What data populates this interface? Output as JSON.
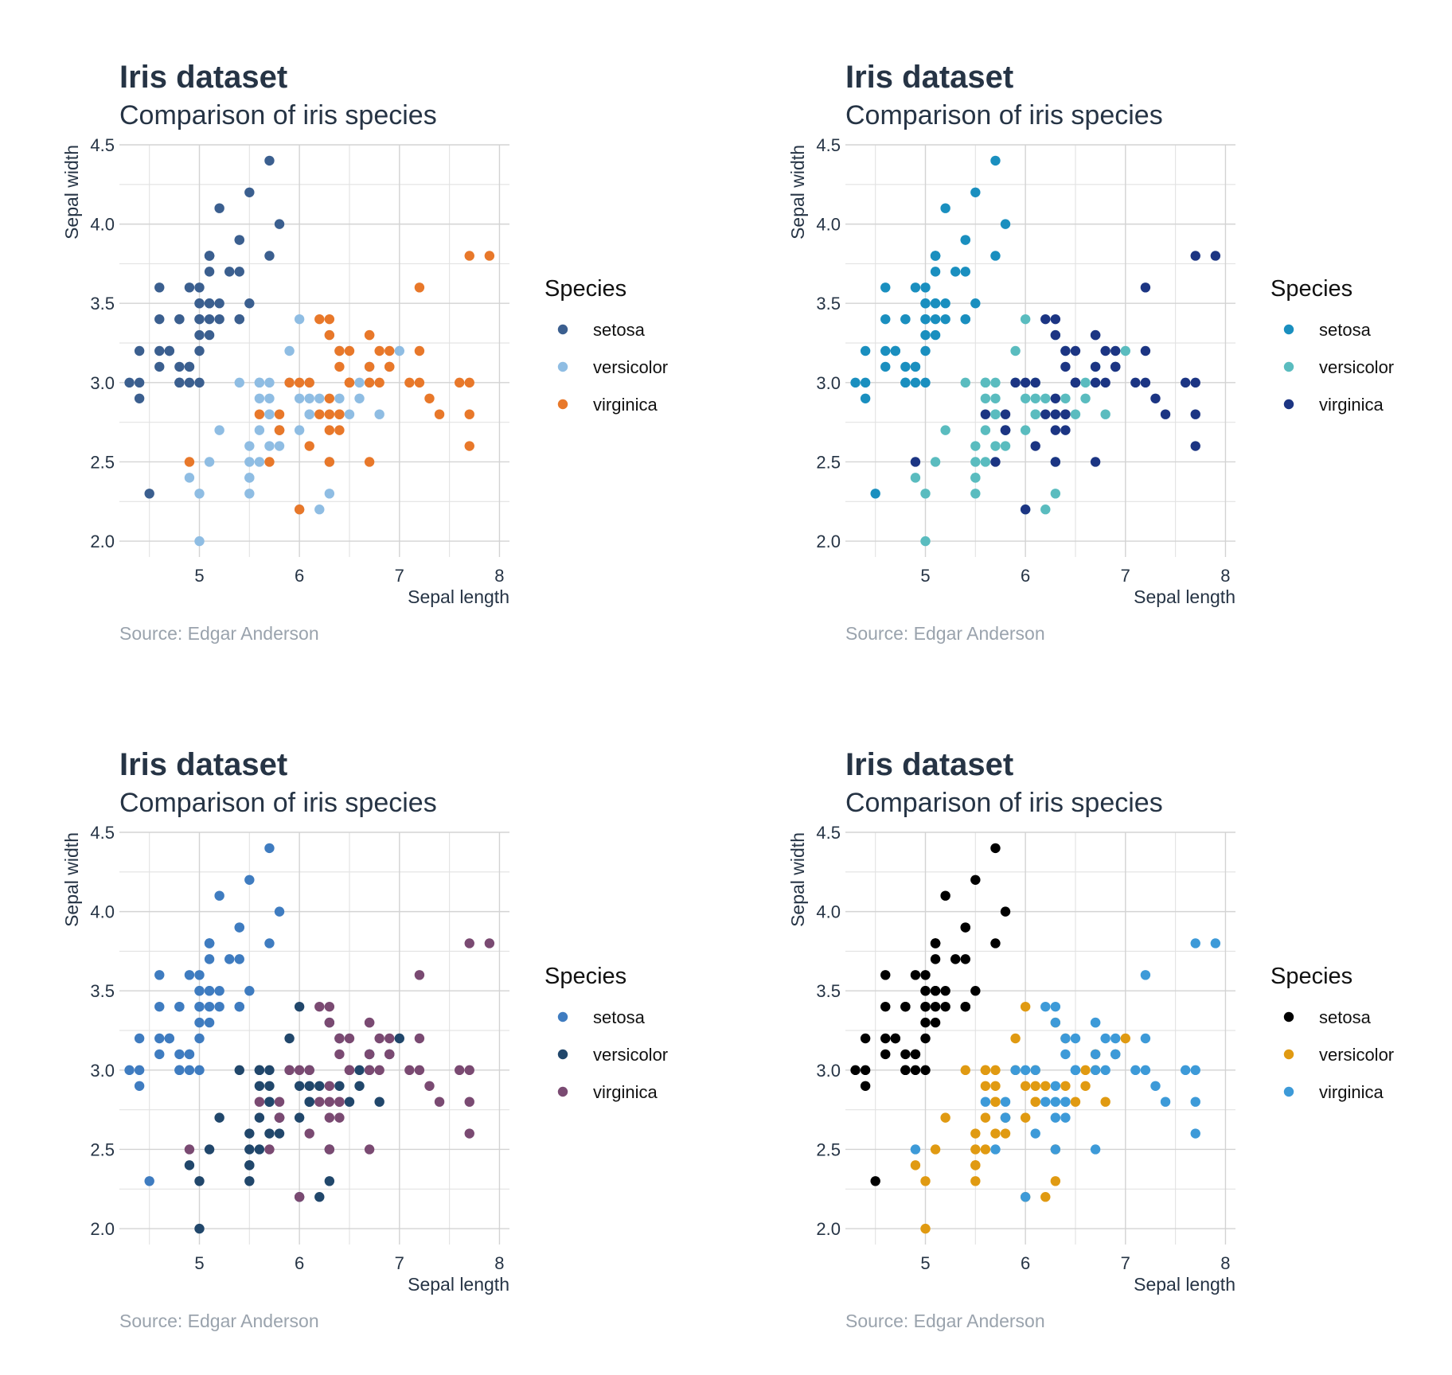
{
  "chart_data": [
    {
      "type": "scatter",
      "title": "Iris dataset",
      "subtitle": "Comparison of iris species",
      "xlabel": "Sepal length",
      "ylabel": "Sepal width",
      "caption": "Source: Edgar Anderson",
      "xlim": [
        4.2,
        8.1
      ],
      "ylim": [
        1.9,
        4.5
      ],
      "xticks": [
        "5",
        "6",
        "7",
        "8"
      ],
      "yticks": [
        "2.0",
        "2.5",
        "3.0",
        "3.5",
        "4.0",
        "4.5"
      ],
      "grid": true,
      "legend": {
        "title": "Species",
        "position": "right"
      },
      "series_ref": "iris",
      "colors": {
        "setosa": "#3b5f8f",
        "versicolor": "#8fbde3",
        "virginica": "#e8782a"
      }
    },
    {
      "type": "scatter",
      "title": "Iris dataset",
      "subtitle": "Comparison of iris species",
      "xlabel": "Sepal length",
      "ylabel": "Sepal width",
      "caption": "Source: Edgar Anderson",
      "xlim": [
        4.2,
        8.1
      ],
      "ylim": [
        1.9,
        4.5
      ],
      "xticks": [
        "5",
        "6",
        "7",
        "8"
      ],
      "yticks": [
        "2.0",
        "2.5",
        "3.0",
        "3.5",
        "4.0",
        "4.5"
      ],
      "grid": true,
      "legend": {
        "title": "Species",
        "position": "right"
      },
      "series_ref": "iris",
      "colors": {
        "setosa": "#1a8fbf",
        "versicolor": "#5abcbf",
        "virginica": "#1c3583"
      }
    },
    {
      "type": "scatter",
      "title": "Iris dataset",
      "subtitle": "Comparison of iris species",
      "xlabel": "Sepal length",
      "ylabel": "Sepal width",
      "caption": "Source: Edgar Anderson",
      "xlim": [
        4.2,
        8.1
      ],
      "ylim": [
        1.9,
        4.5
      ],
      "xticks": [
        "5",
        "6",
        "7",
        "8"
      ],
      "yticks": [
        "2.0",
        "2.5",
        "3.0",
        "3.5",
        "4.0",
        "4.5"
      ],
      "grid": true,
      "legend": {
        "title": "Species",
        "position": "right"
      },
      "series_ref": "iris",
      "colors": {
        "setosa": "#3f7cc0",
        "versicolor": "#21476b",
        "virginica": "#7a4a72"
      }
    },
    {
      "type": "scatter",
      "title": "Iris dataset",
      "subtitle": "Comparison of iris species",
      "xlabel": "Sepal length",
      "ylabel": "Sepal width",
      "caption": "Source: Edgar Anderson",
      "xlim": [
        4.2,
        8.1
      ],
      "ylim": [
        1.9,
        4.5
      ],
      "xticks": [
        "5",
        "6",
        "7",
        "8"
      ],
      "yticks": [
        "2.0",
        "2.5",
        "3.0",
        "3.5",
        "4.0",
        "4.5"
      ],
      "grid": true,
      "legend": {
        "title": "Species",
        "position": "right"
      },
      "series_ref": "iris",
      "colors": {
        "setosa": "#000000",
        "versicolor": "#e09a12",
        "virginica": "#3d9ad8"
      }
    }
  ],
  "iris": {
    "series": [
      {
        "name": "setosa",
        "points": [
          [
            5.1,
            3.5
          ],
          [
            4.9,
            3.0
          ],
          [
            4.7,
            3.2
          ],
          [
            4.6,
            3.1
          ],
          [
            5.0,
            3.6
          ],
          [
            5.4,
            3.9
          ],
          [
            4.6,
            3.4
          ],
          [
            5.0,
            3.4
          ],
          [
            4.4,
            2.9
          ],
          [
            4.9,
            3.1
          ],
          [
            5.4,
            3.7
          ],
          [
            4.8,
            3.4
          ],
          [
            4.8,
            3.0
          ],
          [
            4.3,
            3.0
          ],
          [
            5.8,
            4.0
          ],
          [
            5.7,
            4.4
          ],
          [
            5.4,
            3.9
          ],
          [
            5.1,
            3.5
          ],
          [
            5.7,
            3.8
          ],
          [
            5.1,
            3.8
          ],
          [
            5.4,
            3.4
          ],
          [
            5.1,
            3.7
          ],
          [
            4.6,
            3.6
          ],
          [
            5.1,
            3.3
          ],
          [
            4.8,
            3.4
          ],
          [
            5.0,
            3.0
          ],
          [
            5.0,
            3.4
          ],
          [
            5.2,
            3.5
          ],
          [
            5.2,
            3.4
          ],
          [
            4.7,
            3.2
          ],
          [
            4.8,
            3.1
          ],
          [
            5.4,
            3.4
          ],
          [
            5.2,
            4.1
          ],
          [
            5.5,
            4.2
          ],
          [
            4.9,
            3.1
          ],
          [
            5.0,
            3.2
          ],
          [
            5.5,
            3.5
          ],
          [
            4.9,
            3.6
          ],
          [
            4.4,
            3.0
          ],
          [
            5.1,
            3.4
          ],
          [
            5.0,
            3.5
          ],
          [
            4.5,
            2.3
          ],
          [
            4.4,
            3.2
          ],
          [
            5.0,
            3.5
          ],
          [
            5.1,
            3.8
          ],
          [
            4.8,
            3.0
          ],
          [
            5.1,
            3.8
          ],
          [
            4.6,
            3.2
          ],
          [
            5.3,
            3.7
          ],
          [
            5.0,
            3.3
          ]
        ]
      },
      {
        "name": "versicolor",
        "points": [
          [
            7.0,
            3.2
          ],
          [
            6.4,
            3.2
          ],
          [
            6.9,
            3.1
          ],
          [
            5.5,
            2.3
          ],
          [
            6.5,
            2.8
          ],
          [
            5.7,
            2.8
          ],
          [
            6.3,
            3.3
          ],
          [
            4.9,
            2.4
          ],
          [
            6.6,
            2.9
          ],
          [
            5.2,
            2.7
          ],
          [
            5.0,
            2.0
          ],
          [
            5.9,
            3.0
          ],
          [
            6.0,
            2.2
          ],
          [
            6.1,
            2.9
          ],
          [
            5.6,
            2.9
          ],
          [
            6.7,
            3.1
          ],
          [
            5.6,
            3.0
          ],
          [
            5.8,
            2.7
          ],
          [
            6.2,
            2.2
          ],
          [
            5.6,
            2.5
          ],
          [
            5.9,
            3.2
          ],
          [
            6.1,
            2.8
          ],
          [
            6.3,
            2.5
          ],
          [
            6.1,
            2.8
          ],
          [
            6.4,
            2.9
          ],
          [
            6.6,
            3.0
          ],
          [
            6.8,
            2.8
          ],
          [
            6.7,
            3.0
          ],
          [
            6.0,
            2.9
          ],
          [
            5.7,
            2.6
          ],
          [
            5.5,
            2.4
          ],
          [
            5.5,
            2.4
          ],
          [
            5.8,
            2.7
          ],
          [
            6.0,
            2.7
          ],
          [
            5.4,
            3.0
          ],
          [
            6.0,
            3.4
          ],
          [
            6.7,
            3.1
          ],
          [
            6.3,
            2.3
          ],
          [
            5.6,
            3.0
          ],
          [
            5.5,
            2.5
          ],
          [
            5.5,
            2.6
          ],
          [
            6.1,
            3.0
          ],
          [
            5.8,
            2.6
          ],
          [
            5.0,
            2.3
          ],
          [
            5.6,
            2.7
          ],
          [
            5.7,
            3.0
          ],
          [
            5.7,
            2.9
          ],
          [
            6.2,
            2.9
          ],
          [
            5.1,
            2.5
          ],
          [
            5.7,
            2.8
          ]
        ]
      },
      {
        "name": "virginica",
        "points": [
          [
            6.3,
            3.3
          ],
          [
            5.8,
            2.7
          ],
          [
            7.1,
            3.0
          ],
          [
            6.3,
            2.9
          ],
          [
            6.5,
            3.0
          ],
          [
            7.6,
            3.0
          ],
          [
            4.9,
            2.5
          ],
          [
            7.3,
            2.9
          ],
          [
            6.7,
            2.5
          ],
          [
            7.2,
            3.6
          ],
          [
            6.5,
            3.2
          ],
          [
            6.4,
            2.7
          ],
          [
            6.8,
            3.0
          ],
          [
            5.7,
            2.5
          ],
          [
            5.8,
            2.8
          ],
          [
            6.4,
            3.2
          ],
          [
            6.5,
            3.0
          ],
          [
            7.7,
            3.8
          ],
          [
            7.7,
            2.6
          ],
          [
            6.0,
            2.2
          ],
          [
            6.9,
            3.2
          ],
          [
            5.6,
            2.8
          ],
          [
            7.7,
            2.8
          ],
          [
            6.3,
            2.7
          ],
          [
            6.7,
            3.3
          ],
          [
            7.2,
            3.2
          ],
          [
            6.2,
            2.8
          ],
          [
            6.1,
            3.0
          ],
          [
            6.4,
            2.8
          ],
          [
            7.2,
            3.0
          ],
          [
            7.4,
            2.8
          ],
          [
            7.9,
            3.8
          ],
          [
            6.4,
            2.8
          ],
          [
            6.3,
            2.8
          ],
          [
            6.1,
            2.6
          ],
          [
            7.7,
            3.0
          ],
          [
            6.3,
            3.4
          ],
          [
            6.4,
            3.1
          ],
          [
            6.0,
            3.0
          ],
          [
            6.9,
            3.1
          ],
          [
            6.7,
            3.1
          ],
          [
            6.9,
            3.1
          ],
          [
            5.8,
            2.7
          ],
          [
            6.8,
            3.2
          ],
          [
            6.7,
            3.3
          ],
          [
            6.7,
            3.0
          ],
          [
            6.3,
            2.5
          ],
          [
            6.5,
            3.0
          ],
          [
            6.2,
            3.4
          ],
          [
            5.9,
            3.0
          ]
        ]
      }
    ]
  }
}
